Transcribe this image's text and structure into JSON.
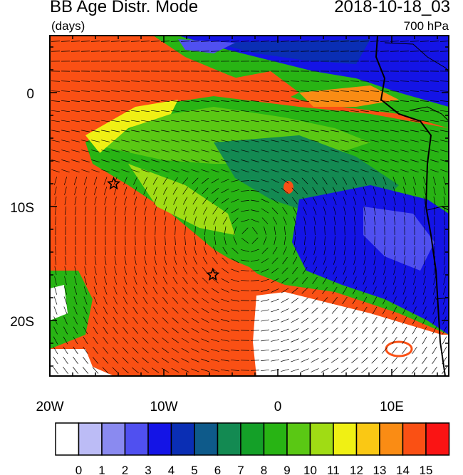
{
  "header": {
    "title": "BB Age Distr. Mode",
    "units": "(days)",
    "datetime": "2018-10-18_03",
    "level": "700 hPa"
  },
  "axes": {
    "lon_ticks": [
      "20W",
      "10W",
      "0",
      "10E"
    ],
    "lat_ticks": [
      "0",
      "10S",
      "20S"
    ]
  },
  "colorbar": {
    "labels": [
      "0",
      "1",
      "2",
      "3",
      "4",
      "5",
      "6",
      "7",
      "8",
      "9",
      "10",
      "11",
      "12",
      "13",
      "14",
      "15"
    ],
    "colors": [
      "#ffffff",
      "#bcbcf6",
      "#8a8af0",
      "#5050f0",
      "#1414e6",
      "#0a2eb4",
      "#0e5a8a",
      "#138a52",
      "#14a028",
      "#28b414",
      "#5ac814",
      "#a0dc14",
      "#f0f014",
      "#fac814",
      "#fa8c14",
      "#fa5014",
      "#fa1414"
    ]
  },
  "markers": [
    {
      "name": "star-1",
      "lon": -14.4,
      "lat": -8.0
    },
    {
      "name": "star-2",
      "lon": -5.7,
      "lat": -16.0
    }
  ]
}
